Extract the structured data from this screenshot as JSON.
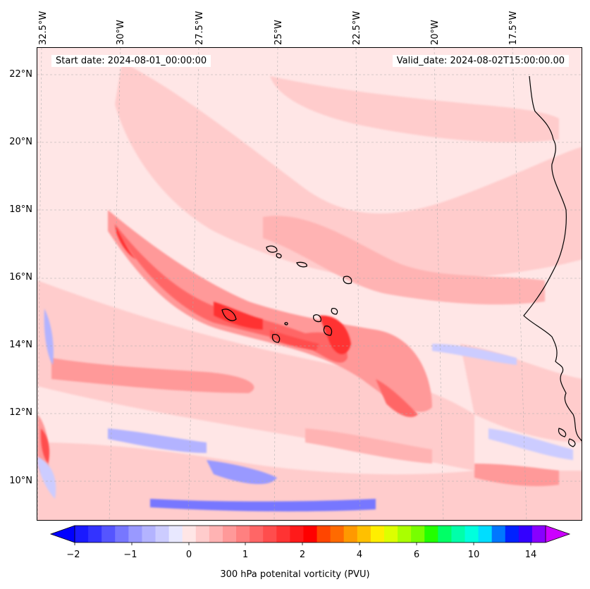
{
  "map": {
    "start_date": "Start date: 2024-08-01_00:00:00",
    "valid_date": "Valid_date: 2024-08-02T15:00:00.00",
    "lon_labels": [
      "32.5°W",
      "30°W",
      "27.5°W",
      "25°W",
      "22.5°W",
      "20°W",
      "17.5°W"
    ],
    "lat_labels": [
      "22°N",
      "20°N",
      "18°N",
      "16°N",
      "14°N",
      "12°N",
      "10°N"
    ]
  },
  "colorbar": {
    "label": "300 hPa potenital vorticity (PVU)",
    "tick_labels": [
      "−2",
      "−1",
      "0",
      "1",
      "2",
      "4",
      "6",
      "10",
      "14"
    ],
    "colors": [
      "#1a1aff",
      "#3333ff",
      "#5555ff",
      "#7777ff",
      "#9999ff",
      "#b3b3ff",
      "#ccccff",
      "#e8e8ff",
      "#ffe6e6",
      "#ffcccc",
      "#ffb3b3",
      "#ff9999",
      "#ff8080",
      "#ff6666",
      "#ff4d4d",
      "#ff3333",
      "#ff1a1a",
      "#ff0000",
      "#ff4500",
      "#ff6a00",
      "#ff9900",
      "#ffc000",
      "#ffee00",
      "#ddff00",
      "#aaff00",
      "#77ff00",
      "#22ff00",
      "#00ff66",
      "#00ffaa",
      "#00ffdd",
      "#00ddff",
      "#0077ff",
      "#0022ff",
      "#3300ff",
      "#8800ff"
    ],
    "under_color": "#0000ff",
    "over_color": "#cc00ff"
  }
}
